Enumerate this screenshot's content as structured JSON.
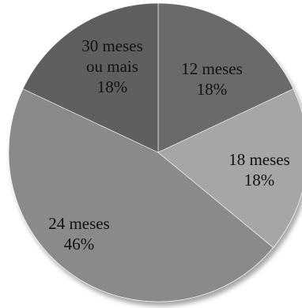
{
  "chart_data": {
    "type": "pie",
    "title": "",
    "start_angle_deg": 0,
    "direction": "clockwise",
    "slices": [
      {
        "label_lines": [
          "12 meses",
          "18%"
        ],
        "name": "12 meses",
        "value": 18,
        "color": "#6b6b6b"
      },
      {
        "label_lines": [
          "18 meses",
          "18%"
        ],
        "name": "18 meses",
        "value": 18,
        "color": "#a6a6a6"
      },
      {
        "label_lines": [
          "24 meses",
          "46%"
        ],
        "name": "24 meses",
        "value": 46,
        "color": "#8a8a8a"
      },
      {
        "label_lines": [
          "30 meses",
          "ou mais",
          "18%"
        ],
        "name": "30 meses ou mais",
        "value": 18,
        "color": "#5e5e5e"
      }
    ]
  }
}
